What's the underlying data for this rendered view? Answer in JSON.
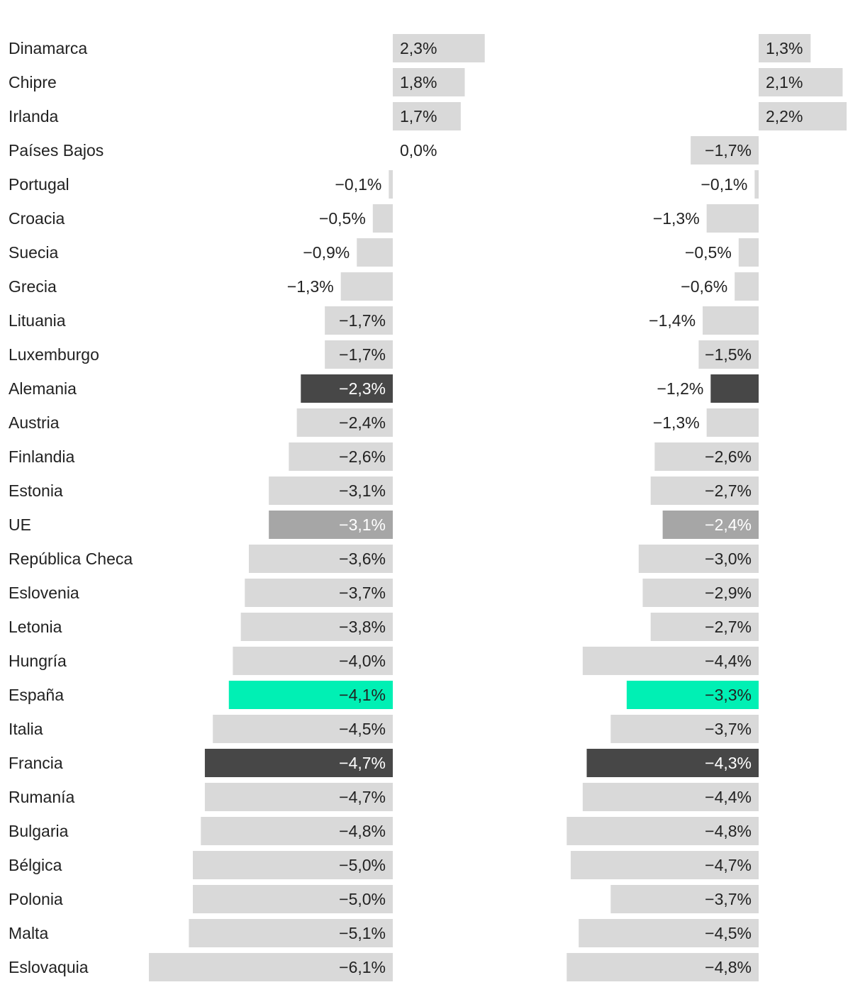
{
  "chart_data": {
    "type": "bar",
    "orientation": "horizontal",
    "title": "",
    "xlabel": "",
    "ylabel": "",
    "grid": false,
    "legend": "none",
    "value_suffix": "%",
    "decimal_separator": ",",
    "categories": [
      "Dinamarca",
      "Chipre",
      "Irlanda",
      "Países Bajos",
      "Portugal",
      "Croacia",
      "Suecia",
      "Grecia",
      "Lituania",
      "Luxemburgo",
      "Alemania",
      "Austria",
      "Finlandia",
      "Estonia",
      "UE",
      "República Checa",
      "Eslovenia",
      "Letonia",
      "Hungría",
      "España",
      "Italia",
      "Francia",
      "Rumanía",
      "Bulgaria",
      "Bélgica",
      "Polonia",
      "Malta",
      "Eslovaquia"
    ],
    "series": [
      {
        "values": [
          2.3,
          1.8,
          1.7,
          0.0,
          -0.1,
          -0.5,
          -0.9,
          -1.3,
          -1.7,
          -1.7,
          -2.3,
          -2.4,
          -2.6,
          -3.1,
          -3.1,
          -3.6,
          -3.7,
          -3.8,
          -4.0,
          -4.1,
          -4.5,
          -4.7,
          -4.7,
          -4.8,
          -5.0,
          -5.0,
          -5.1,
          -6.1
        ]
      },
      {
        "values": [
          1.3,
          2.1,
          2.2,
          -1.7,
          -0.1,
          -1.3,
          -0.5,
          -0.6,
          -1.4,
          -1.5,
          -1.2,
          -1.3,
          -2.6,
          -2.7,
          -2.4,
          -3.0,
          -2.9,
          -2.7,
          -4.4,
          -3.3,
          -3.7,
          -4.3,
          -4.4,
          -4.8,
          -4.7,
          -3.7,
          -4.5,
          -4.8
        ]
      }
    ],
    "colors": {
      "default": "#d9d9d9",
      "eu": "#a6a6a6",
      "highlight_dark": "#474747",
      "spain": "#00f0b4",
      "label_dark": "#222222",
      "label_light": "#ffffff"
    },
    "highlights": {
      "Alemania": "highlight_dark",
      "Francia": "highlight_dark",
      "UE": "eu",
      "España": "spain"
    }
  }
}
